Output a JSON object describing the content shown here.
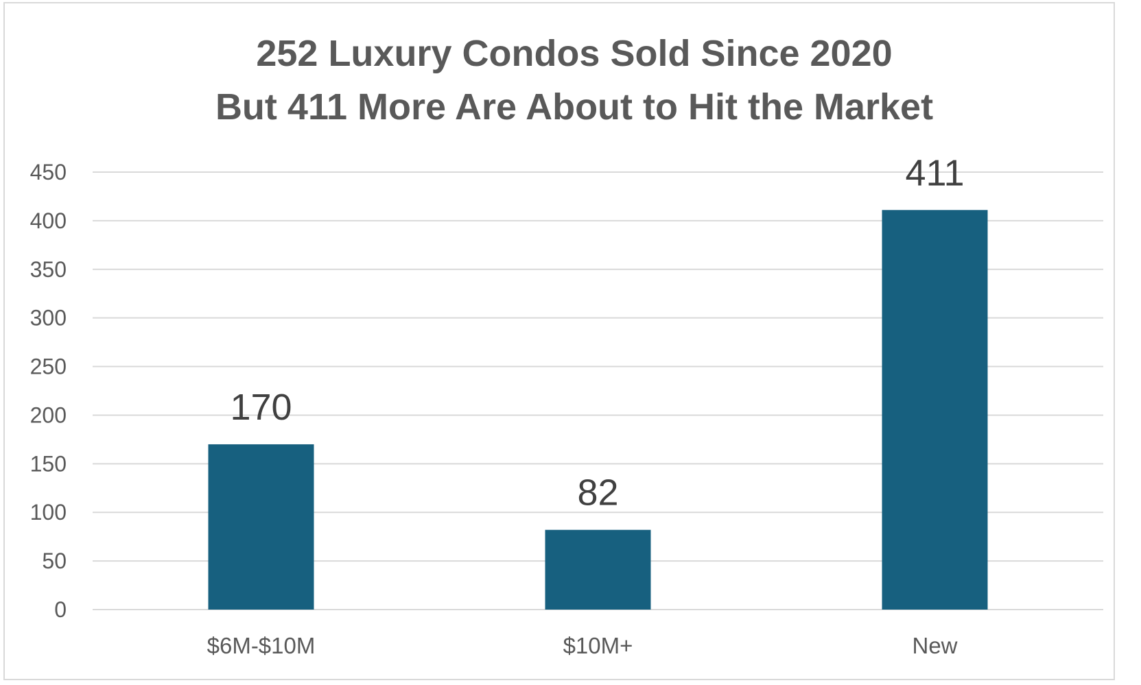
{
  "chart_data": {
    "type": "bar",
    "title_lines": [
      "252 Luxury Condos Sold Since 2020",
      "But 411 More Are About to Hit the Market"
    ],
    "categories": [
      "$6M-$10M",
      "$10M+",
      "New"
    ],
    "values": [
      170,
      82,
      411
    ],
    "data_labels": [
      "170",
      "82",
      "411"
    ],
    "y_ticks": [
      "0",
      "50",
      "100",
      "150",
      "200",
      "250",
      "300",
      "350",
      "400",
      "450"
    ],
    "ylim": [
      0,
      450
    ],
    "grid": true,
    "legend": "none",
    "colors": {
      "bar": "#17607f",
      "grid": "#d9d9d9",
      "text": "#595959"
    }
  }
}
